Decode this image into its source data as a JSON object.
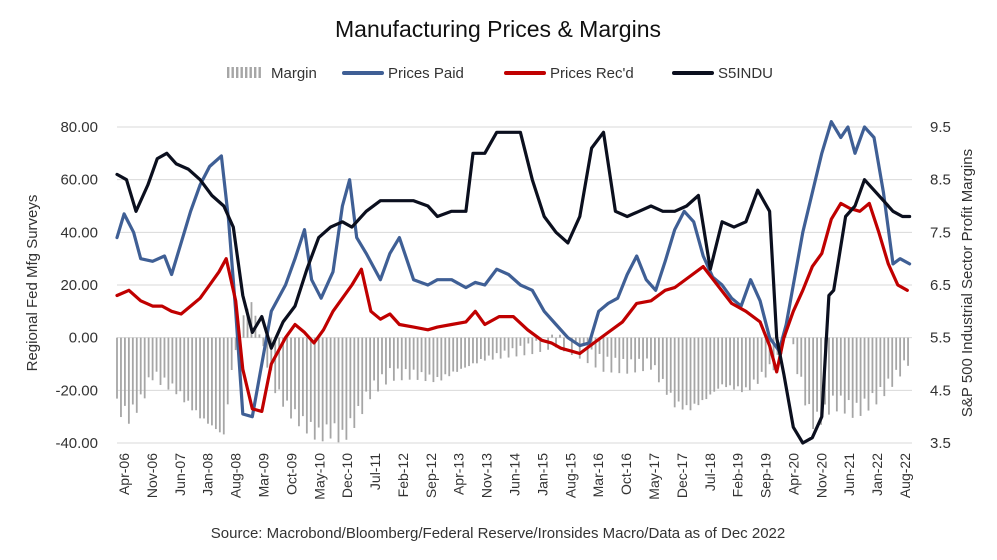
{
  "chart_data": {
    "type": "line",
    "title": "Manufacturing Prices & Margins",
    "source": "Source: Macrobond/Bloomberg/Federal Reserve/Ironsides Macro/Data as of Dec 2022",
    "ylabel_left": "Regional Fed Mfg Surveys",
    "ylabel_right": "S&P 500 Industrial Sector Profit Margins",
    "ylim_left": [
      -40,
      80
    ],
    "ylim_right": [
      3.5,
      9.5
    ],
    "yticks_left": [
      "-40.00",
      "-20.00",
      "0.00",
      "20.00",
      "40.00",
      "60.00",
      "80.00"
    ],
    "yticks_right": [
      "3.5",
      "4.5",
      "5.5",
      "6.5",
      "7.5",
      "8.5",
      "9.5"
    ],
    "x_range": [
      2006.25,
      2023.0
    ],
    "x_tick_labels": [
      "Apr-06",
      "Nov-06",
      "Jun-07",
      "Jan-08",
      "Aug-08",
      "Mar-09",
      "Oct-09",
      "May-10",
      "Dec-10",
      "Jul-11",
      "Feb-12",
      "Sep-12",
      "Apr-13",
      "Nov-13",
      "Jun-14",
      "Jan-15",
      "Aug-15",
      "Mar-16",
      "Oct-16",
      "May-17",
      "Dec-17",
      "Jul-18",
      "Feb-19",
      "Sep-19",
      "Apr-20",
      "Nov-20",
      "Jun-21",
      "Jan-22",
      "Aug-22"
    ],
    "grid": true,
    "legend_position": "top",
    "legend": [
      {
        "name": "Margin",
        "color": "#a6a6a6",
        "kind": "bar"
      },
      {
        "name": "Prices Paid",
        "color": "#3f5f95",
        "kind": "line"
      },
      {
        "name": "Prices Rec'd",
        "color": "#c00000",
        "kind": "line"
      },
      {
        "name": "S5INDU",
        "color": "#0b0f1e",
        "kind": "line"
      }
    ],
    "series": [
      {
        "name": "Prices Paid",
        "axis": "left",
        "color": "#3f5f95",
        "x": [
          2006.25,
          2006.4,
          2006.6,
          2006.75,
          2007.0,
          2007.25,
          2007.4,
          2007.6,
          2007.8,
          2008.0,
          2008.2,
          2008.45,
          2008.6,
          2008.75,
          2008.9,
          2009.1,
          2009.3,
          2009.5,
          2009.8,
          2010.0,
          2010.2,
          2010.35,
          2010.55,
          2010.8,
          2011.0,
          2011.15,
          2011.3,
          2011.5,
          2011.8,
          2012.0,
          2012.2,
          2012.5,
          2012.8,
          2013.0,
          2013.3,
          2013.6,
          2013.8,
          2014.0,
          2014.25,
          2014.5,
          2014.75,
          2015.0,
          2015.25,
          2015.5,
          2015.75,
          2016.0,
          2016.2,
          2016.4,
          2016.6,
          2016.8,
          2017.0,
          2017.2,
          2017.4,
          2017.6,
          2017.8,
          2018.0,
          2018.2,
          2018.4,
          2018.6,
          2018.8,
          2019.0,
          2019.2,
          2019.4,
          2019.6,
          2019.8,
          2020.0,
          2020.2,
          2020.35,
          2020.5,
          2020.7,
          2020.9,
          2021.1,
          2021.3,
          2021.5,
          2021.65,
          2021.8,
          2022.0,
          2022.2,
          2022.4,
          2022.6,
          2022.75,
          2022.95
        ],
        "y": [
          38,
          47,
          40,
          30,
          29,
          31,
          24,
          36,
          48,
          58,
          65,
          69,
          45,
          10,
          -29,
          -30,
          -10,
          10,
          20,
          30,
          41,
          22,
          15,
          25,
          50,
          60,
          38,
          32,
          22,
          32,
          38,
          22,
          20,
          22,
          22,
          19,
          21,
          20,
          26,
          24,
          20,
          18,
          10,
          5,
          0,
          -3,
          -2,
          10,
          13,
          15,
          24,
          31,
          22,
          18,
          29,
          41,
          48,
          44,
          31,
          23,
          20,
          15,
          12,
          22,
          14,
          0,
          -5,
          5,
          20,
          40,
          55,
          70,
          82,
          76,
          80,
          70,
          80,
          76,
          55,
          28,
          30,
          28
        ]
      },
      {
        "name": "Prices Rec'd",
        "axis": "left",
        "color": "#c00000",
        "x": [
          2006.25,
          2006.5,
          2006.75,
          2007.0,
          2007.2,
          2007.4,
          2007.6,
          2007.8,
          2008.0,
          2008.2,
          2008.4,
          2008.55,
          2008.75,
          2008.9,
          2009.1,
          2009.3,
          2009.5,
          2009.8,
          2010.0,
          2010.2,
          2010.4,
          2010.6,
          2010.8,
          2011.0,
          2011.2,
          2011.4,
          2011.6,
          2011.8,
          2012.0,
          2012.2,
          2012.5,
          2012.8,
          2013.0,
          2013.3,
          2013.6,
          2013.8,
          2014.0,
          2014.3,
          2014.6,
          2014.9,
          2015.2,
          2015.4,
          2015.6,
          2015.8,
          2016.0,
          2016.3,
          2016.6,
          2016.9,
          2017.2,
          2017.5,
          2017.8,
          2018.0,
          2018.3,
          2018.6,
          2018.9,
          2019.2,
          2019.5,
          2019.8,
          2020.0,
          2020.15,
          2020.3,
          2020.5,
          2020.7,
          2020.9,
          2021.1,
          2021.3,
          2021.5,
          2021.7,
          2021.9,
          2022.1,
          2022.3,
          2022.5,
          2022.7,
          2022.9
        ],
        "y": [
          16,
          18,
          14,
          12,
          12,
          10,
          9,
          12,
          15,
          20,
          25,
          30,
          14,
          -12,
          -27,
          -28,
          -10,
          0,
          5,
          2,
          -2,
          3,
          10,
          15,
          20,
          26,
          10,
          7,
          9,
          5,
          4,
          3,
          4,
          5,
          6,
          10,
          5,
          8,
          8,
          3,
          -1,
          -2,
          -4,
          -5,
          -6,
          -2,
          2,
          6,
          13,
          14,
          18,
          19,
          23,
          27,
          20,
          13,
          10,
          6,
          -3,
          -13,
          0,
          10,
          18,
          27,
          32,
          45,
          51,
          49,
          48,
          51,
          40,
          28,
          20,
          18
        ]
      },
      {
        "name": "S5INDU",
        "axis": "right",
        "color": "#0b0f1e",
        "x": [
          2006.25,
          2006.45,
          2006.65,
          2006.9,
          2007.1,
          2007.3,
          2007.5,
          2007.75,
          2008.0,
          2008.25,
          2008.5,
          2008.7,
          2008.9,
          2009.1,
          2009.3,
          2009.5,
          2009.75,
          2010.0,
          2010.25,
          2010.5,
          2010.75,
          2011.0,
          2011.2,
          2011.5,
          2011.8,
          2012.2,
          2012.5,
          2012.8,
          2013.0,
          2013.3,
          2013.6,
          2013.75,
          2014.0,
          2014.25,
          2014.5,
          2014.75,
          2015.0,
          2015.25,
          2015.5,
          2015.75,
          2016.0,
          2016.25,
          2016.5,
          2016.75,
          2017.0,
          2017.25,
          2017.5,
          2017.75,
          2018.0,
          2018.25,
          2018.5,
          2018.75,
          2019.0,
          2019.25,
          2019.5,
          2019.75,
          2020.0,
          2020.15,
          2020.3,
          2020.5,
          2020.7,
          2020.9,
          2021.1,
          2021.25,
          2021.35,
          2021.6,
          2021.8,
          2022.0,
          2022.2,
          2022.4,
          2022.6,
          2022.8,
          2022.95
        ],
        "y": [
          8.6,
          8.5,
          7.9,
          8.4,
          8.9,
          9.0,
          8.8,
          8.7,
          8.5,
          8.2,
          8.0,
          7.6,
          6.3,
          5.6,
          5.9,
          5.3,
          5.8,
          6.1,
          6.8,
          7.4,
          7.6,
          7.7,
          7.6,
          7.9,
          8.1,
          8.1,
          8.1,
          8.0,
          7.8,
          7.9,
          7.9,
          9.0,
          9.0,
          9.4,
          9.4,
          9.4,
          8.5,
          7.8,
          7.5,
          7.3,
          7.8,
          9.1,
          9.4,
          7.9,
          7.8,
          7.9,
          8.0,
          7.9,
          7.9,
          8.0,
          8.2,
          6.8,
          7.7,
          7.6,
          7.7,
          8.3,
          7.9,
          5.5,
          4.8,
          3.8,
          3.5,
          3.6,
          4.0,
          6.3,
          6.4,
          7.8,
          8.0,
          8.5,
          8.3,
          8.1,
          7.9,
          7.8,
          7.8
        ]
      }
    ],
    "margin_bars": {
      "name": "Margin",
      "axis": "left",
      "color": "#a6a6a6",
      "x": [
        2006.25,
        2006.5,
        2006.75,
        2007.0,
        2007.5,
        2008.0,
        2008.5,
        2008.7,
        2008.9,
        2009.1,
        2009.3,
        2009.6,
        2009.9,
        2010.2,
        2010.5,
        2010.8,
        2011.0,
        2011.3,
        2011.6,
        2012.0,
        2012.5,
        2013.0,
        2013.5,
        2014.0,
        2014.5,
        2015.0,
        2015.5,
        2016.0,
        2016.5,
        2017.0,
        2017.5,
        2018.0,
        2018.3,
        2018.6,
        2019.0,
        2019.5,
        2020.0,
        2020.2,
        2020.35,
        2020.5,
        2020.7,
        2020.9,
        2021.1,
        2021.3,
        2021.5,
        2021.8,
        2022.0,
        2022.3,
        2022.6,
        2022.95
      ],
      "y": [
        -26,
        -30,
        -24,
        -14,
        -20,
        -30,
        -37,
        -8,
        8,
        14,
        -3,
        -20,
        -28,
        -33,
        -37,
        -35,
        -38,
        -30,
        -20,
        -14,
        -14,
        -16,
        -12,
        -8,
        -6,
        -4,
        -1,
        -5,
        -10,
        -11,
        -10,
        -25,
        -27,
        -24,
        -18,
        -20,
        -12,
        -8,
        4,
        -5,
        -20,
        -32,
        -30,
        -25,
        -25,
        -28,
        -26,
        -22,
        -16,
        -8
      ]
    }
  }
}
